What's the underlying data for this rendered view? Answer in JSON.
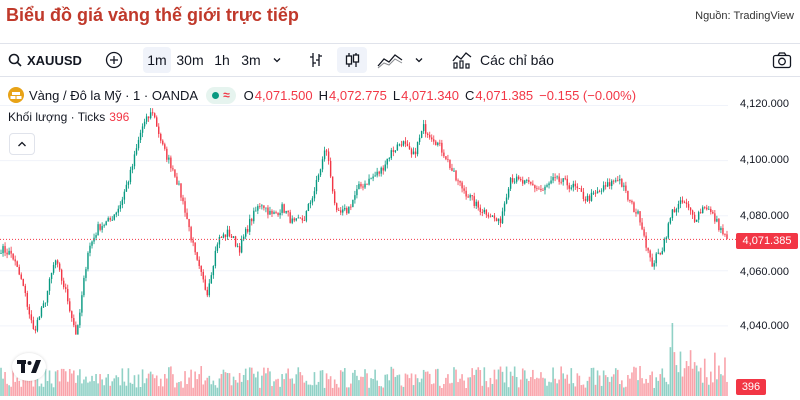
{
  "page": {
    "title": "Biểu đồ giá vàng thế giới trực tiếp",
    "source": "Nguồn: TradingView"
  },
  "toolbar": {
    "symbol": "XAUUSD",
    "intervals": [
      "1m",
      "30m",
      "1h",
      "3m"
    ],
    "active_interval": "1m",
    "indicators_label": "Các chỉ báo"
  },
  "legend": {
    "name": "Vàng / Đô la Mỹ · 1 · OANDA",
    "o_label": "O",
    "o": "4,071.500",
    "h_label": "H",
    "h": "4,072.775",
    "l_label": "L",
    "l": "4,071.340",
    "c_label": "C",
    "c": "4,071.385",
    "change": "−0.155 (−0.00%)",
    "volume_label": "Khối lượng · Ticks",
    "volume_value": "396"
  },
  "axis": {
    "ticks": [
      "4,120.000",
      "4,100.000",
      "4,080.000",
      "4,060.000",
      "4,040.000"
    ],
    "last_price": "4,071.385",
    "last_volume": "396"
  },
  "colors": {
    "up": "#089981",
    "down": "#f23645",
    "title": "#c0392b",
    "gold": "#e8a317"
  },
  "icons": [
    "plus-circle-icon",
    "chevron-down-icon",
    "bar-style-icon",
    "candle-style-icon",
    "line-style-icon",
    "indicators-icon",
    "camera-icon",
    "tradingview-logo-icon",
    "chevron-up-icon",
    "wave-icon"
  ],
  "chart_data": {
    "type": "candlestick",
    "y_ticks": [
      4120,
      4100,
      4080,
      4060,
      4040
    ],
    "last_price": 4071.385,
    "anchor_closes": [
      4068,
      4066,
      4055,
      4038,
      4048,
      4064,
      4052,
      4036,
      4067,
      4076,
      4078,
      4084,
      4096,
      4112,
      4118,
      4104,
      4096,
      4082,
      4064,
      4052,
      4071,
      4074,
      4068,
      4078,
      4085,
      4080,
      4083,
      4077,
      4079,
      4090,
      4105,
      4080,
      4082,
      4090,
      4093,
      4096,
      4103,
      4107,
      4101,
      4112,
      4108,
      4102,
      4093,
      4088,
      4083,
      4081,
      4077,
      4094,
      4092,
      4091,
      4089,
      4093,
      4092,
      4090,
      4086,
      4088,
      4091,
      4094,
      4085,
      4079,
      4062,
      4068,
      4082,
      4085,
      4079,
      4084,
      4078,
      4071
    ]
  }
}
